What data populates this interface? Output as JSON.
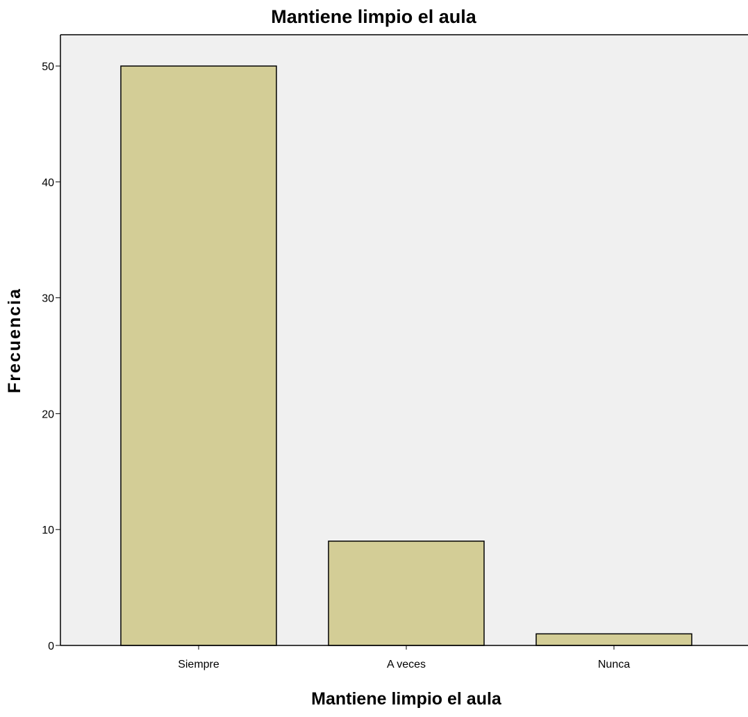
{
  "chart_data": {
    "type": "bar",
    "title": "Mantiene limpio el aula",
    "xlabel": "Mantiene limpio el aula",
    "ylabel": "Frecuencia",
    "categories": [
      "Siempre",
      "A veces",
      "Nunca"
    ],
    "values": [
      50,
      9,
      1
    ],
    "ylim": [
      0,
      52.7
    ],
    "yticks": [
      "0",
      "10",
      "20",
      "30",
      "40",
      "50"
    ],
    "grid": false,
    "legend": "none",
    "colors": {
      "bar_fill": "#d3cd96",
      "bar_stroke": "#000000",
      "plot_background": "#f0f0f0",
      "axis": "#000000"
    }
  }
}
